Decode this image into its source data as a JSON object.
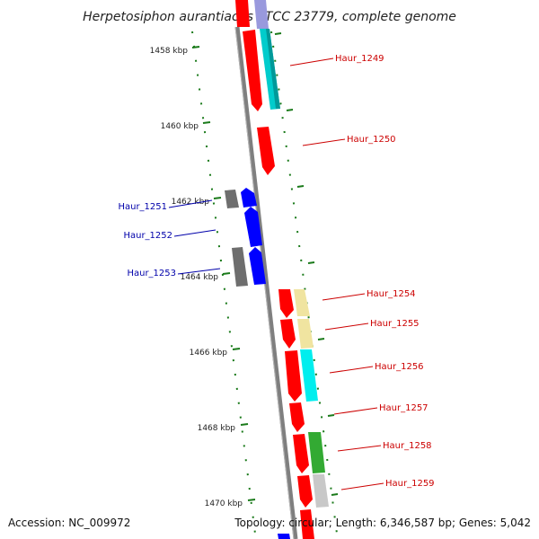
{
  "title": "Herpetosiphon aurantiacus ATCC 23779, complete genome",
  "footer": {
    "accession": "Accession: NC_009972",
    "topology": "Topology: circular; Length: 6,346,587 bp; Genes: 5,042"
  },
  "colors": {
    "backbone": "#7f7f7f",
    "tick": "#1a7a1a",
    "forward_label": "#cc0000",
    "reverse_label": "#0000aa",
    "red": "#ff0000",
    "blue": "#0000ff",
    "gray": "#6e6e6e",
    "cyan": "#00cccc",
    "yellow": "#f0e4a0",
    "green": "#33aa33",
    "lightgray": "#c8c8c8",
    "lavender": "#9999dd"
  },
  "kbp_labels": [
    "1458 kbp",
    "1460 kbp",
    "1462 kbp",
    "1464 kbp",
    "1466 kbp",
    "1468 kbp",
    "1470 kbp"
  ],
  "forward_genes": [
    {
      "name": "Haur_1249",
      "color": "red"
    },
    {
      "name": "Haur_1250",
      "color": "red"
    },
    {
      "name": "Haur_1254",
      "color": "red"
    },
    {
      "name": "Haur_1255",
      "color": "red"
    },
    {
      "name": "Haur_1256",
      "color": "red"
    },
    {
      "name": "Haur_1257",
      "color": "red"
    },
    {
      "name": "Haur_1258",
      "color": "red"
    },
    {
      "name": "Haur_1259",
      "color": "red"
    }
  ],
  "reverse_genes": [
    {
      "name": "Haur_1251",
      "color": "blue"
    },
    {
      "name": "Haur_1252",
      "color": "blue"
    },
    {
      "name": "Haur_1253",
      "color": "blue"
    }
  ]
}
